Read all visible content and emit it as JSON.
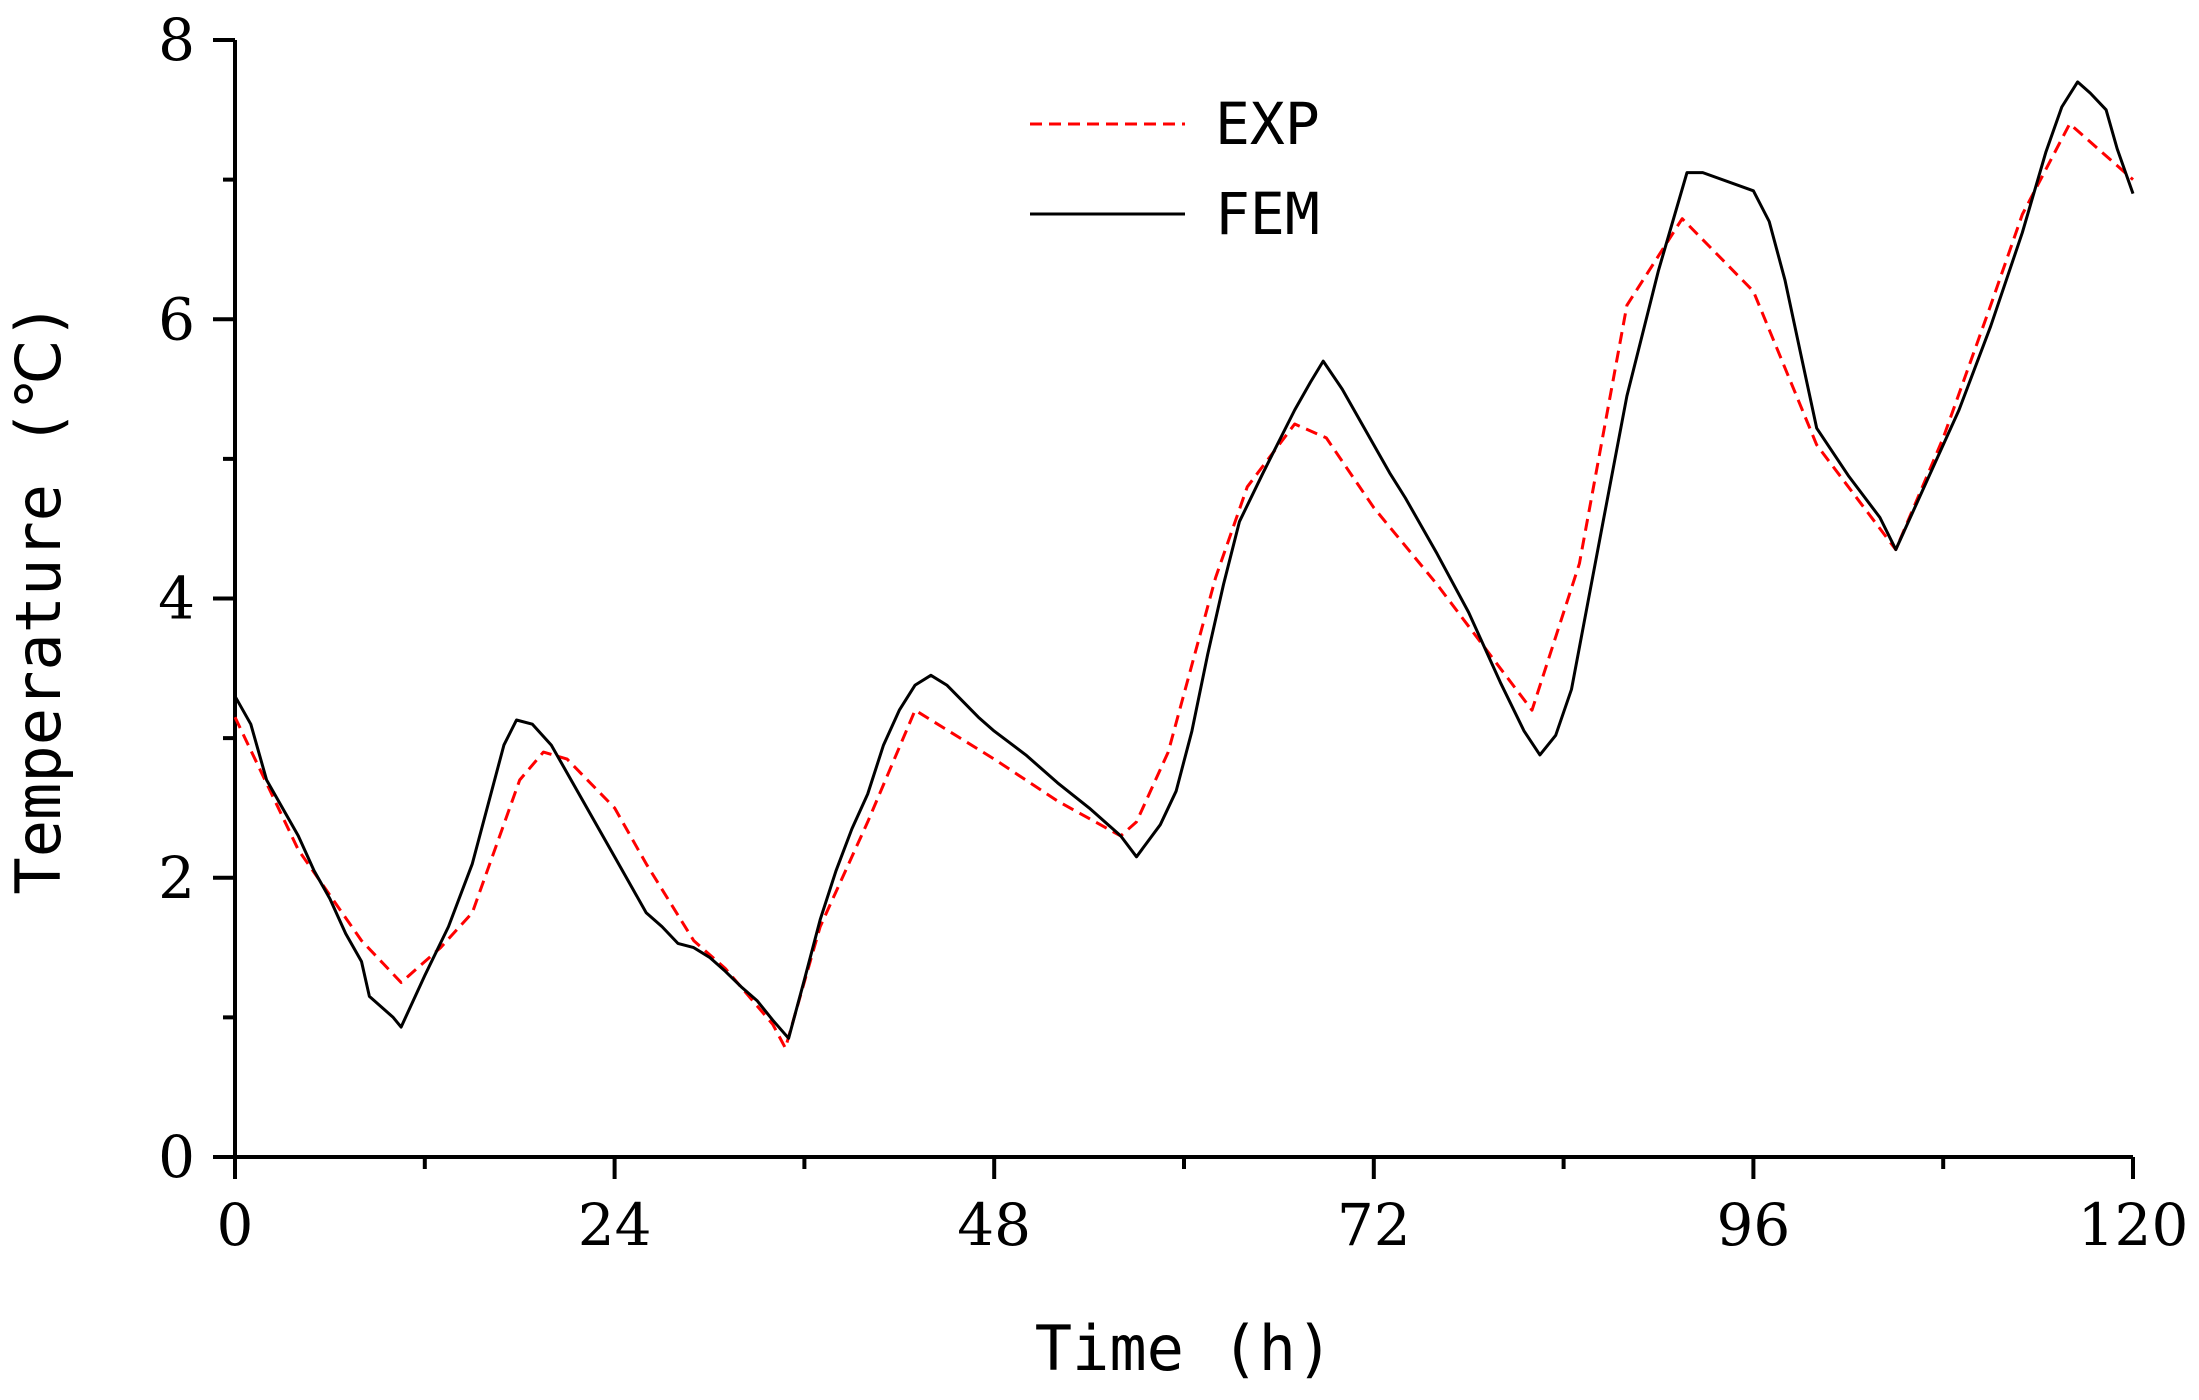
{
  "chart_data": {
    "type": "line",
    "title": "",
    "xlabel": "Time (h)",
    "ylabel": "Temperature (℃)",
    "xlim": [
      0,
      120
    ],
    "ylim": [
      0,
      8
    ],
    "xticks": [
      0,
      24,
      48,
      72,
      96,
      120
    ],
    "yticks": [
      0,
      2,
      4,
      6,
      8
    ],
    "grid": false,
    "legend_position": "top-center",
    "series": [
      {
        "name": "EXP",
        "color": "#ff0000",
        "style": "dashed",
        "points": [
          [
            0,
            3.15
          ],
          [
            4,
            2.2
          ],
          [
            8,
            1.55
          ],
          [
            10.5,
            1.25
          ],
          [
            13,
            1.5
          ],
          [
            15,
            1.75
          ],
          [
            18,
            2.7
          ],
          [
            19.5,
            2.9
          ],
          [
            21,
            2.85
          ],
          [
            24,
            2.5
          ],
          [
            26,
            2.1
          ],
          [
            29,
            1.55
          ],
          [
            31,
            1.35
          ],
          [
            34,
            0.95
          ],
          [
            34.8,
            0.78
          ],
          [
            37,
            1.65
          ],
          [
            40,
            2.4
          ],
          [
            43,
            3.2
          ],
          [
            48,
            2.85
          ],
          [
            52,
            2.55
          ],
          [
            56,
            2.3
          ],
          [
            57,
            2.4
          ],
          [
            59,
            2.9
          ],
          [
            62,
            4.15
          ],
          [
            64,
            4.8
          ],
          [
            67,
            5.25
          ],
          [
            69,
            5.15
          ],
          [
            72,
            4.65
          ],
          [
            76,
            4.1
          ],
          [
            80,
            3.5
          ],
          [
            82,
            3.2
          ],
          [
            85,
            4.25
          ],
          [
            88,
            6.1
          ],
          [
            91.5,
            6.72
          ],
          [
            96,
            6.2
          ],
          [
            100,
            5.1
          ],
          [
            103,
            4.65
          ],
          [
            105,
            4.35
          ],
          [
            108,
            5.15
          ],
          [
            111,
            6.1
          ],
          [
            113,
            6.75
          ],
          [
            116,
            7.4
          ],
          [
            120,
            7.0
          ]
        ]
      },
      {
        "name": "FEM",
        "color": "#000000",
        "style": "solid",
        "points": [
          [
            0,
            3.3
          ],
          [
            1,
            3.1
          ],
          [
            2,
            2.7
          ],
          [
            4,
            2.3
          ],
          [
            5,
            2.05
          ],
          [
            6,
            1.85
          ],
          [
            7,
            1.6
          ],
          [
            8,
            1.4
          ],
          [
            8.5,
            1.15
          ],
          [
            10,
            1.0
          ],
          [
            10.5,
            0.93
          ],
          [
            12,
            1.3
          ],
          [
            13.5,
            1.65
          ],
          [
            15,
            2.1
          ],
          [
            17,
            2.95
          ],
          [
            17.8,
            3.13
          ],
          [
            18.8,
            3.1
          ],
          [
            20,
            2.95
          ],
          [
            22,
            2.55
          ],
          [
            24,
            2.15
          ],
          [
            26,
            1.75
          ],
          [
            27,
            1.65
          ],
          [
            28,
            1.53
          ],
          [
            29,
            1.5
          ],
          [
            30,
            1.43
          ],
          [
            31,
            1.33
          ],
          [
            32,
            1.22
          ],
          [
            33,
            1.12
          ],
          [
            34,
            0.98
          ],
          [
            35,
            0.85
          ],
          [
            36,
            1.27
          ],
          [
            37,
            1.7
          ],
          [
            38,
            2.05
          ],
          [
            39,
            2.35
          ],
          [
            40,
            2.6
          ],
          [
            41,
            2.95
          ],
          [
            42,
            3.2
          ],
          [
            43,
            3.38
          ],
          [
            44,
            3.45
          ],
          [
            45,
            3.38
          ],
          [
            47,
            3.15
          ],
          [
            48,
            3.05
          ],
          [
            50,
            2.88
          ],
          [
            52,
            2.68
          ],
          [
            54,
            2.5
          ],
          [
            56,
            2.3
          ],
          [
            57,
            2.15
          ],
          [
            58.5,
            2.38
          ],
          [
            59.5,
            2.62
          ],
          [
            60.5,
            3.05
          ],
          [
            61.5,
            3.6
          ],
          [
            62.5,
            4.1
          ],
          [
            63.5,
            4.55
          ],
          [
            65,
            4.9
          ],
          [
            67,
            5.35
          ],
          [
            68,
            5.55
          ],
          [
            68.8,
            5.7
          ],
          [
            70,
            5.5
          ],
          [
            72,
            5.1
          ],
          [
            73,
            4.9
          ],
          [
            74,
            4.72
          ],
          [
            76,
            4.32
          ],
          [
            78,
            3.9
          ],
          [
            80,
            3.4
          ],
          [
            81.5,
            3.05
          ],
          [
            82.5,
            2.88
          ],
          [
            83.5,
            3.02
          ],
          [
            84.5,
            3.35
          ],
          [
            85.5,
            3.95
          ],
          [
            86.5,
            4.55
          ],
          [
            88,
            5.45
          ],
          [
            90,
            6.35
          ],
          [
            91.8,
            7.05
          ],
          [
            92.8,
            7.05
          ],
          [
            96,
            6.92
          ],
          [
            97,
            6.7
          ],
          [
            98,
            6.28
          ],
          [
            99,
            5.75
          ],
          [
            100,
            5.22
          ],
          [
            102,
            4.88
          ],
          [
            104,
            4.58
          ],
          [
            105,
            4.35
          ],
          [
            107,
            4.85
          ],
          [
            109,
            5.35
          ],
          [
            111,
            5.95
          ],
          [
            113,
            6.62
          ],
          [
            114.5,
            7.2
          ],
          [
            115.5,
            7.52
          ],
          [
            116.5,
            7.7
          ],
          [
            117.3,
            7.62
          ],
          [
            118.3,
            7.5
          ],
          [
            119,
            7.22
          ],
          [
            120,
            6.9
          ]
        ]
      }
    ]
  }
}
